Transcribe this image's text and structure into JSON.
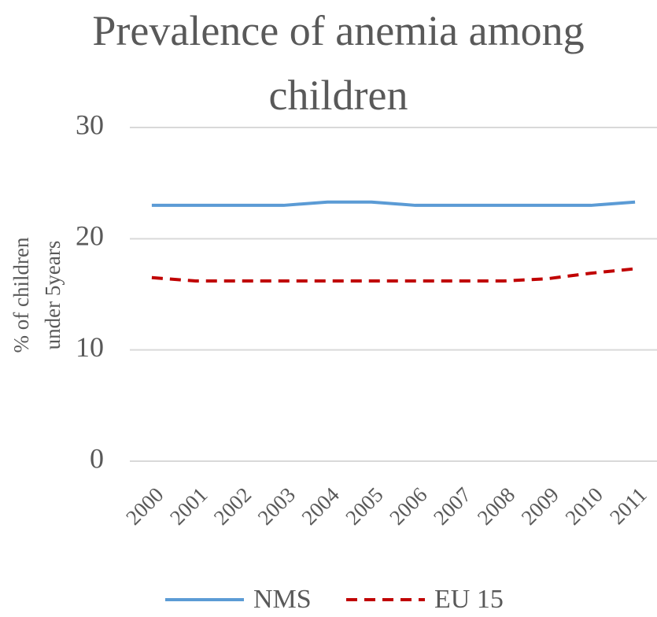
{
  "chart_data": {
    "type": "line",
    "title": "Prevalence of anemia among children",
    "y_label": "% of children under 5years",
    "categories": [
      "2000",
      "2001",
      "2002",
      "2003",
      "2004",
      "2005",
      "2006",
      "2007",
      "2008",
      "2009",
      "2010",
      "2011"
    ],
    "series": [
      {
        "name": "NMS",
        "color": "#5b9bd5",
        "dash": false,
        "values": [
          23,
          23,
          23,
          23,
          23.3,
          23.3,
          23,
          23,
          23,
          23,
          23,
          23.3
        ]
      },
      {
        "name": "EU 15",
        "color": "#c00000",
        "dash": true,
        "values": [
          16.5,
          16.2,
          16.2,
          16.2,
          16.2,
          16.2,
          16.2,
          16.2,
          16.2,
          16.4,
          16.9,
          17.3
        ]
      }
    ],
    "ylim": [
      0,
      30
    ],
    "yticks": [
      0,
      10,
      20,
      30
    ],
    "grid": true
  }
}
